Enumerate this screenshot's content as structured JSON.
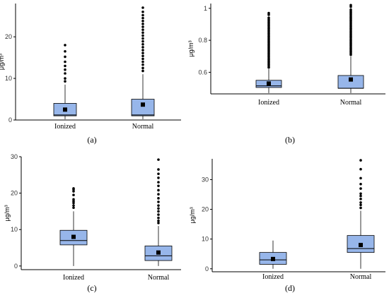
{
  "chart_data": [
    {
      "type": "box",
      "panel_label": "(a)",
      "ylabel": "μg/m³",
      "ylim": [
        0,
        28
      ],
      "yticks": [
        0,
        10,
        20
      ],
      "categories": [
        "Ionized",
        "Normal"
      ],
      "boxes": [
        {
          "name": "Ionized",
          "whisker_low": 0.2,
          "q1": 1.0,
          "median": 1.2,
          "q3": 4.0,
          "whisker_high": 8.5,
          "mean": 2.5,
          "outliers": [
            9.3,
            10.0,
            11.2,
            12.1,
            13.0,
            14.0,
            15.2,
            16.5,
            18.0
          ]
        },
        {
          "name": "Normal",
          "whisker_low": 0.2,
          "q1": 1.0,
          "median": 1.2,
          "q3": 5.0,
          "whisker_high": 11.0,
          "mean": 3.7,
          "outliers": [
            11.8,
            12.5,
            13.3,
            14.0,
            14.7,
            15.4,
            16.1,
            16.8,
            17.5,
            18.2,
            18.9,
            19.6,
            20.3,
            21.0,
            21.7,
            22.4,
            23.1,
            23.8,
            24.5,
            25.2,
            26.0,
            27.0
          ]
        }
      ]
    },
    {
      "type": "box",
      "panel_label": "(b)",
      "ylabel": "μg/m³",
      "ylim": [
        0.465,
        1.03
      ],
      "yticks": [
        0.6,
        0.8,
        1.0
      ],
      "categories": [
        "Ionized",
        "Normal"
      ],
      "boxes": [
        {
          "name": "Ionized",
          "whisker_low": 0.47,
          "q1": 0.505,
          "median": 0.515,
          "q3": 0.55,
          "whisker_high": 0.62,
          "mean": 0.53,
          "outliers_range": [
            0.63,
            0.95
          ],
          "outliers": [
            0.96,
            0.97
          ]
        },
        {
          "name": "Normal",
          "whisker_low": 0.47,
          "q1": 0.5,
          "median": 0.5,
          "q3": 0.58,
          "whisker_high": 0.7,
          "mean": 0.555,
          "outliers_range": [
            0.71,
            1.0
          ],
          "outliers": [
            1.01,
            1.02
          ]
        }
      ]
    },
    {
      "type": "box",
      "panel_label": "(c)",
      "ylabel": "μg/m³",
      "ylim": [
        -1,
        30
      ],
      "yticks": [
        0,
        10,
        20,
        30
      ],
      "categories": [
        "Ionized",
        "Normal"
      ],
      "boxes": [
        {
          "name": "Ionized",
          "whisker_low": 0,
          "q1": 5.8,
          "median": 7.0,
          "q3": 9.8,
          "whisker_high": 15.0,
          "mean": 8.0,
          "outliers": [
            16.0,
            16.6,
            17.3,
            17.8,
            18.3,
            19.5,
            20.5,
            21.0,
            21.3
          ]
        },
        {
          "name": "Normal",
          "whisker_low": 0,
          "q1": 1.5,
          "median": 2.8,
          "q3": 5.5,
          "whisker_high": 11.0,
          "mean": 3.7,
          "outliers": [
            11.8,
            12.4,
            13.2,
            14.1,
            15.0,
            15.8,
            16.6,
            17.6,
            18.6,
            19.7,
            20.8,
            22.0,
            23.0,
            24.2,
            25.3,
            26.5,
            29.2
          ]
        }
      ]
    },
    {
      "type": "box",
      "panel_label": "(d)",
      "ylabel": "μg/m³",
      "ylim": [
        -1,
        37
      ],
      "yticks": [
        0,
        10,
        20,
        30
      ],
      "categories": [
        "Ionized",
        "Normal"
      ],
      "boxes": [
        {
          "name": "Ionized",
          "whisker_low": 0,
          "q1": 1.5,
          "median": 3.0,
          "q3": 5.5,
          "whisker_high": 9.5,
          "mean": 3.3,
          "outliers": []
        },
        {
          "name": "Normal",
          "whisker_low": 0,
          "q1": 5.5,
          "median": 6.8,
          "q3": 11.2,
          "whisker_high": 19.5,
          "mean": 8.0,
          "outliers": [
            20.5,
            21.5,
            22.3,
            23.5,
            24.5,
            25.3,
            27.0,
            28.5,
            30.5,
            33.5,
            36.5
          ]
        }
      ]
    }
  ]
}
